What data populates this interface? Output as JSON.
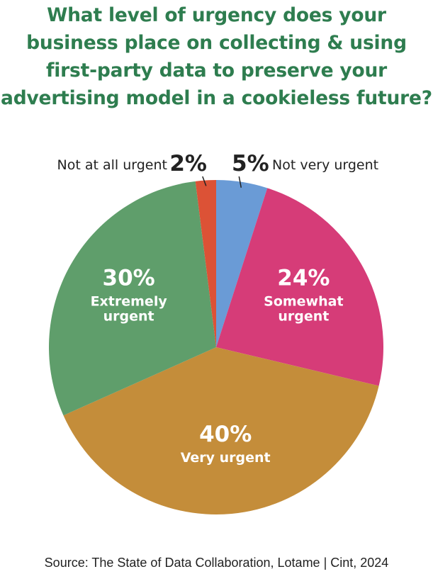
{
  "title_lines": [
    "What level of urgency does your",
    "business place on collecting & using",
    "first-party data to preserve your",
    "advertising model in a cookieless future?"
  ],
  "source": "Source: The State of Data Collaboration, Lotame | Cint, 2024",
  "chart_data": {
    "type": "pie",
    "title": "What level of urgency does your business place on collecting & using first-party data to preserve your advertising model in a cookieless future?",
    "unit": "%",
    "start_angle_deg": 0,
    "direction": "clockwise",
    "slices": [
      {
        "label": "Not very urgent",
        "value": 5,
        "display": "5%",
        "color": "#6a9bd6"
      },
      {
        "label": "Somewhat urgent",
        "value": 24,
        "display": "24%",
        "color": "#d63c78"
      },
      {
        "label": "Very urgent",
        "value": 40,
        "display": "40%",
        "color": "#c48d3a"
      },
      {
        "label": "Extremely urgent",
        "value": 30,
        "display": "30%",
        "color": "#5f9e6b"
      },
      {
        "label": "Not at all urgent",
        "value": 2,
        "display": "2%",
        "color": "#dc5236"
      }
    ],
    "inside_label_lines": {
      "Somewhat urgent": [
        "Somewhat",
        "urgent"
      ],
      "Very urgent": [
        "Very urgent"
      ],
      "Extremely urgent": [
        "Extremely",
        "urgent"
      ]
    }
  }
}
